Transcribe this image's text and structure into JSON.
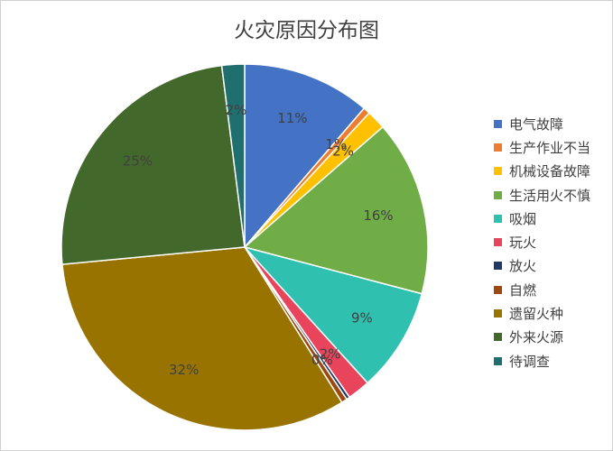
{
  "chart_data": {
    "type": "pie",
    "title": "火灾原因分布图",
    "categories": [
      "电气故障",
      "生产作业不当",
      "机械设备故障",
      "生活用火不慎",
      "吸烟",
      "玩火",
      "放火",
      "自燃",
      "遗留火种",
      "外来火源",
      "待调查"
    ],
    "values": [
      11.3,
      0.6,
      1.7,
      15.5,
      9.2,
      2.0,
      0.3,
      0.5,
      32.4,
      24.5,
      2.0
    ],
    "labels": [
      "11%",
      "1%",
      "2%",
      "16%",
      "9%",
      "2%",
      "0%",
      "",
      "32%",
      "25%",
      "2%"
    ],
    "colors": [
      "#4472c4",
      "#ed7d31",
      "#ffc000",
      "#70ad47",
      "#2fc0b0",
      "#e8455c",
      "#203864",
      "#9e480e",
      "#997300",
      "#43682b",
      "#1e6f6e"
    ],
    "legend_position": "right"
  }
}
